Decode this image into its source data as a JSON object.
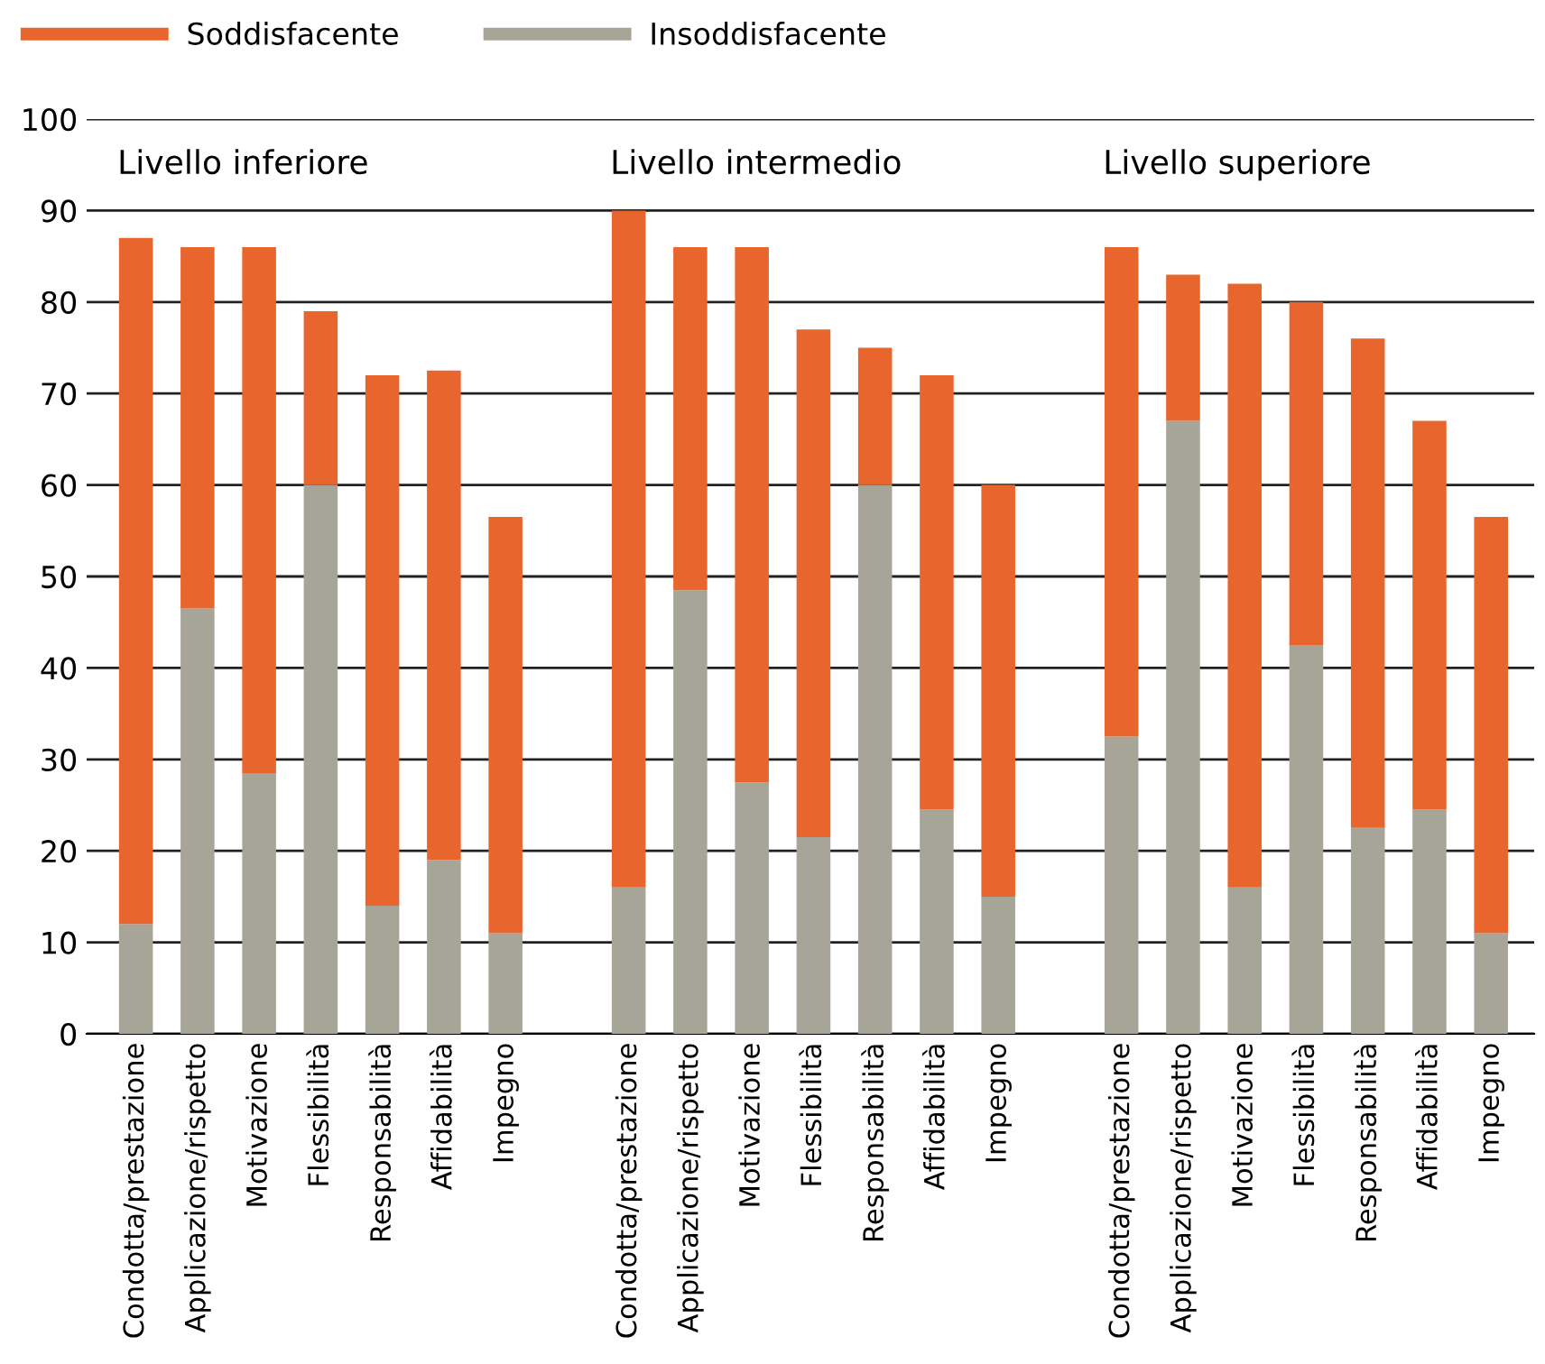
{
  "chart_data": {
    "type": "bar",
    "stacked": true,
    "categories": [
      "Condotta/prestazione",
      "Applicazione/rispetto",
      "Motivazione",
      "Flessibilità",
      "Responsabilità",
      "Affidabilità",
      "Impegno",
      null,
      "Condotta/prestazione",
      "Applicazione/rispetto",
      "Motivazione",
      "Flessibilità",
      "Responsabilità",
      "Affidabilità",
      "Impegno",
      null,
      "Condotta/prestazione",
      "Applicazione/rispetto",
      "Motivazione",
      "Flessibilità",
      "Responsabilità",
      "Affidabilità",
      "Impegno"
    ],
    "series": [
      {
        "name": "Insoddisfacente",
        "color": "#a7a598",
        "values": [
          12,
          46.5,
          28.5,
          60,
          14,
          19,
          11,
          null,
          16,
          48.5,
          27.5,
          21.5,
          60,
          24.5,
          15,
          null,
          32.5,
          67,
          16,
          42.5,
          22.5,
          24.5,
          11
        ]
      },
      {
        "name": "Soddisfacente",
        "color": "#e8652d",
        "values": [
          75,
          39.5,
          57.5,
          19,
          58,
          53.5,
          45.5,
          null,
          74,
          37.5,
          58.5,
          55.5,
          15,
          47.5,
          45,
          null,
          53.5,
          16,
          66,
          37.5,
          53.5,
          42.5,
          45.5
        ]
      }
    ],
    "annotations": [
      "Livello inferiore",
      "Livello intermedio",
      "Livello superiore"
    ],
    "ylim": [
      0,
      100
    ],
    "yticks": [
      0,
      10,
      20,
      30,
      40,
      50,
      60,
      70,
      80,
      90,
      100
    ],
    "grid": "y",
    "legend": "top left"
  }
}
